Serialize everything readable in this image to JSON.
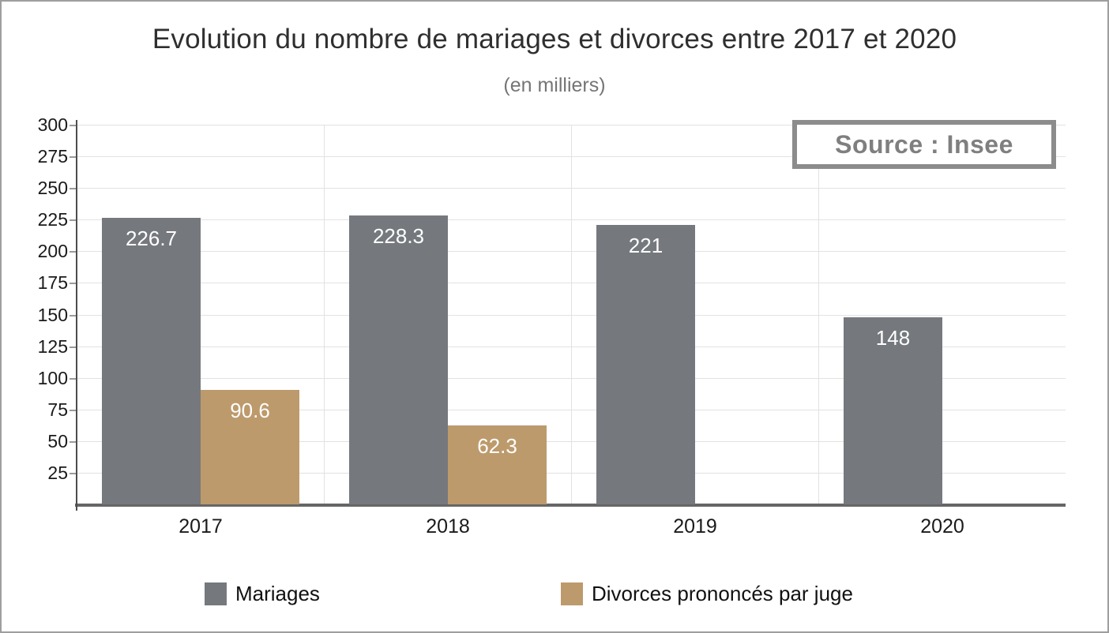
{
  "chart_data": {
    "type": "bar",
    "title": "Evolution du nombre de mariages et divorces entre 2017 et 2020",
    "subtitle": "(en milliers)",
    "categories": [
      "2017",
      "2018",
      "2019",
      "2020"
    ],
    "series": [
      {
        "name": "Mariages",
        "color": "#75797e",
        "values": [
          226.7,
          228.3,
          221,
          148
        ],
        "value_labels": [
          "226.7",
          "228.3",
          "221",
          "148"
        ]
      },
      {
        "name": "Divorces prononcés par juge",
        "color": "#bd9a6c",
        "values": [
          90.6,
          62.3,
          null,
          null
        ],
        "value_labels": [
          "90.6",
          "62.3",
          null,
          null
        ]
      }
    ],
    "ylim": [
      0,
      300
    ],
    "ytick_step": 25,
    "ytick_labels": [
      "25",
      "50",
      "75",
      "100",
      "125",
      "150",
      "175",
      "200",
      "225",
      "250",
      "275",
      "300"
    ],
    "grid": true,
    "legend_position": "bottom",
    "value_label_color": "#ffffff",
    "gridline_color": "#e2e2e2",
    "axis_color": "#4d4d4d",
    "annotations": [
      {
        "text": "Source : Insee",
        "position": "top-right"
      }
    ]
  },
  "source_box": {
    "label": "Source : Insee",
    "text_color": "#7f7f7f",
    "border_color": "#8c8c8c"
  },
  "page": {
    "background": "#ffffff",
    "border_color": "#9e9e9e",
    "bottom_strip_color": "#8fa8d8"
  }
}
